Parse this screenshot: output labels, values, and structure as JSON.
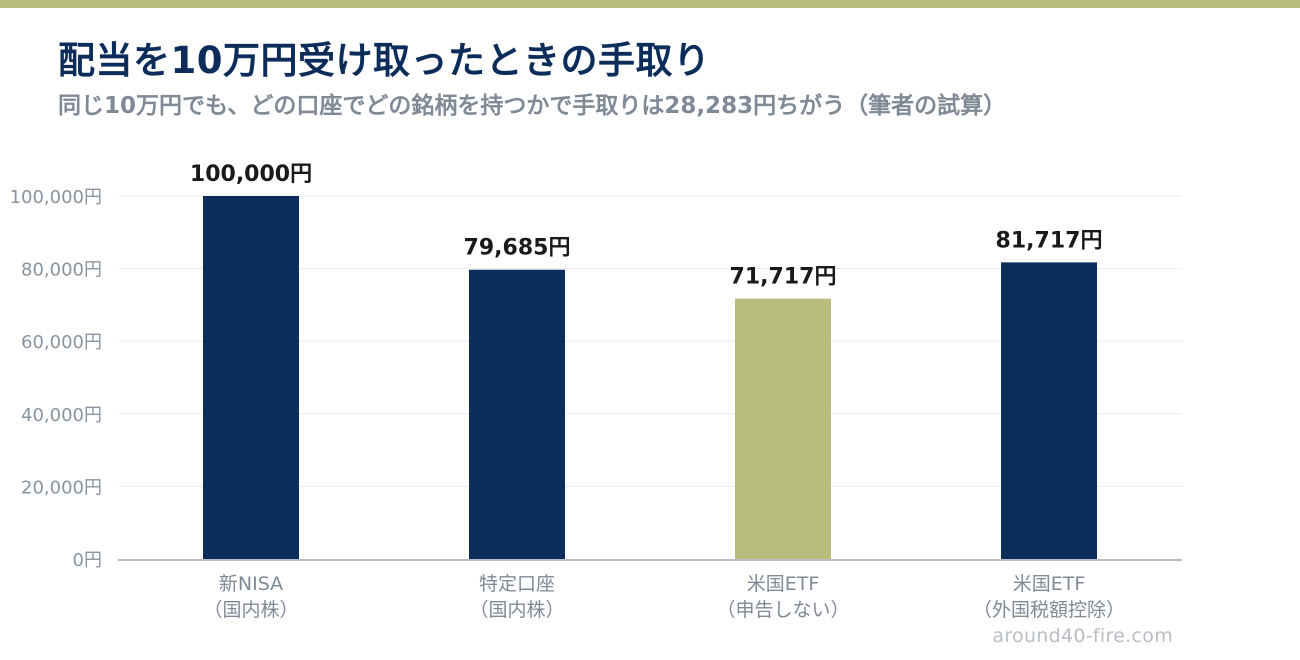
{
  "header": {
    "title": "配当を10万円受け取ったときの手取り",
    "subtitle": "同じ10万円でも、どの口座でどの銘柄を持つかで手取りは28,283円ちがう（筆者の試算）"
  },
  "chart_data": {
    "type": "bar",
    "categories": [
      [
        "新NISA",
        "（国内株）"
      ],
      [
        "特定口座",
        "（国内株）"
      ],
      [
        "米国ETF",
        "（申告しない）"
      ],
      [
        "米国ETF",
        "（外国税額控除）"
      ]
    ],
    "values": [
      100000,
      79685,
      71717,
      81717
    ],
    "value_labels": [
      "100,000円",
      "79,685円",
      "71,717円",
      "81,717円"
    ],
    "bar_colors": [
      "#0c2d5a",
      "#0c2d5a",
      "#b8bd7e",
      "#0c2d5a"
    ],
    "ylim": [
      0,
      100000
    ],
    "yticks": [
      0,
      20000,
      40000,
      60000,
      80000,
      100000
    ],
    "ytick_labels": [
      "0円",
      "20,000円",
      "40,000円",
      "60,000円",
      "80,000円",
      "100,000円"
    ],
    "grid": true
  },
  "footer": {
    "watermark": "around40-fire.com"
  },
  "colors": {
    "accent": "#b8bd7e",
    "primary": "#0c2d5a",
    "muted_text": "#7f8a96"
  }
}
